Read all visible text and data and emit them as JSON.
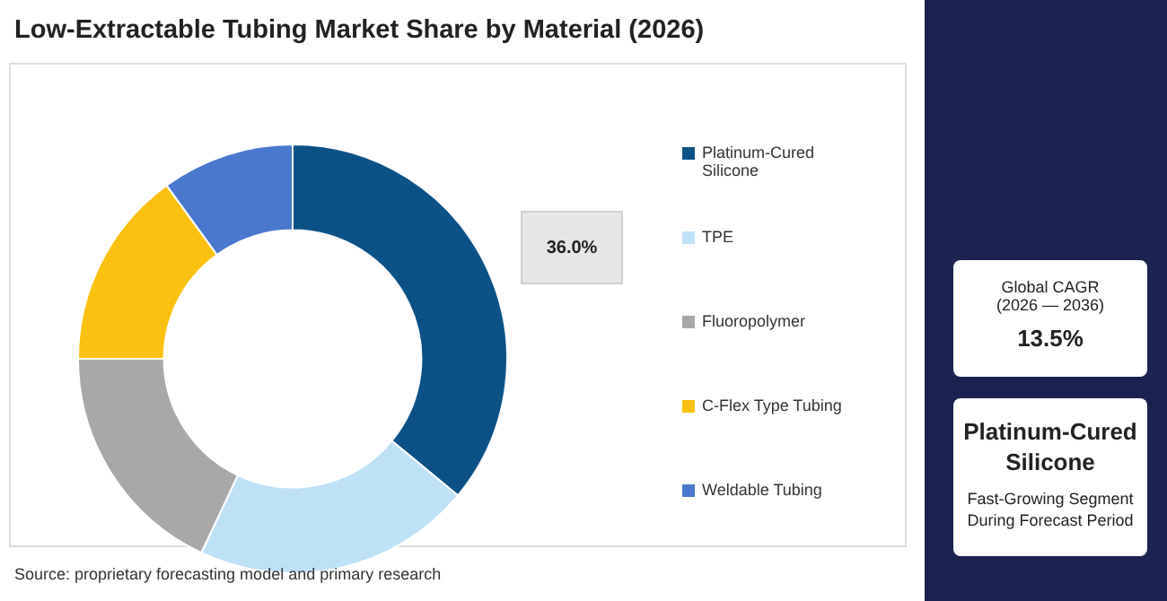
{
  "chart_data": {
    "type": "donut",
    "title": "Low-Extractable Tubing Market Share by Material (2026)",
    "categories": [
      "Platinum-Cured Silicone",
      "TPE",
      "Fluoropolymer",
      "C-Flex Type Tubing",
      "Weldable Tubing"
    ],
    "values": [
      36.0,
      21,
      18,
      15,
      10
    ],
    "value_labels": [
      "36.0%",
      null,
      null,
      null,
      null
    ],
    "colors": [
      "#0b5186",
      "#bfe1f6",
      "#a8a8a8",
      "#fbc110",
      "#4a78cf"
    ],
    "legend": "right",
    "annotations": [
      "Global CAGR (2026 — 2036)",
      "13.5%",
      "Platinum-Cured Silicone",
      "Fast-Growing Segment During Forecast Period",
      "Source: proprietary forecasting model and primary research"
    ]
  }
}
